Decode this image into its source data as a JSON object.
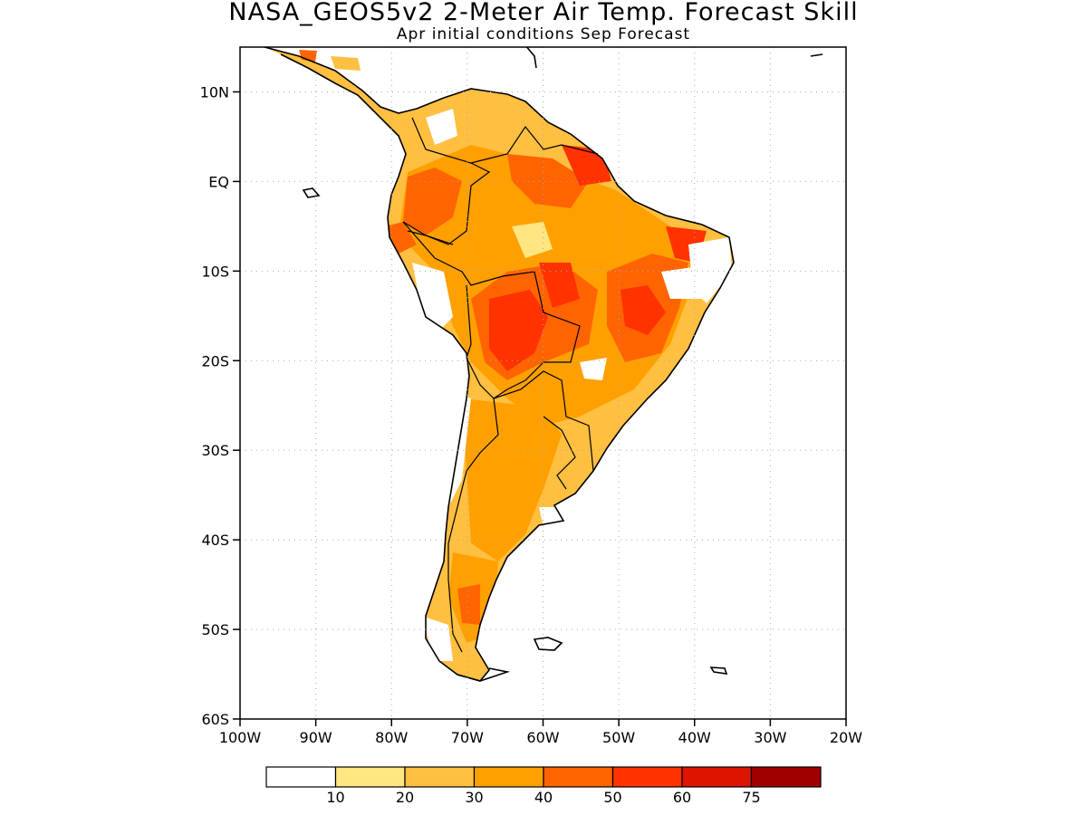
{
  "title": "NASA_GEOS5v2 2-Meter Air Temp. Forecast Skill",
  "subtitle": "Apr initial conditions  Sep Forecast",
  "map": {
    "lon_range": [
      -100,
      -20
    ],
    "lat_range": [
      -60,
      15
    ],
    "lat_ticks": [
      {
        "value": 10,
        "label": "10N"
      },
      {
        "value": 0,
        "label": "EQ"
      },
      {
        "value": -10,
        "label": "10S"
      },
      {
        "value": -20,
        "label": "20S"
      },
      {
        "value": -30,
        "label": "30S"
      },
      {
        "value": -40,
        "label": "40S"
      },
      {
        "value": -50,
        "label": "50S"
      },
      {
        "value": -60,
        "label": "60S"
      }
    ],
    "lon_ticks": [
      {
        "value": -100,
        "label": "100W"
      },
      {
        "value": -90,
        "label": "90W"
      },
      {
        "value": -80,
        "label": "80W"
      },
      {
        "value": -70,
        "label": "70W"
      },
      {
        "value": -60,
        "label": "60W"
      },
      {
        "value": -50,
        "label": "50W"
      },
      {
        "value": -40,
        "label": "40W"
      },
      {
        "value": -30,
        "label": "30W"
      },
      {
        "value": -20,
        "label": "20W"
      }
    ]
  },
  "colorbar": {
    "bins": [
      {
        "color": "#ffffff",
        "label": ""
      },
      {
        "color": "#ffe680",
        "label": "10"
      },
      {
        "color": "#ffbf40",
        "label": "20"
      },
      {
        "color": "#ffa000",
        "label": "30"
      },
      {
        "color": "#ff6400",
        "label": "40"
      },
      {
        "color": "#ff3200",
        "label": "50"
      },
      {
        "color": "#dc1400",
        "label": "60"
      },
      {
        "color": "#a00000",
        "label": "75"
      }
    ]
  }
}
